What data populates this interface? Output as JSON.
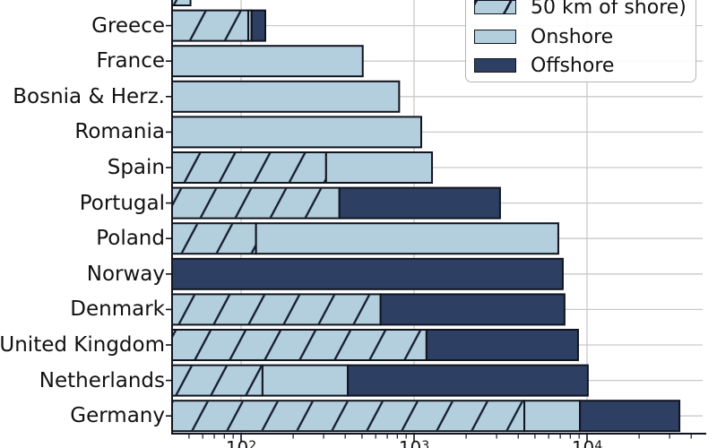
{
  "legend": {
    "items": [
      {
        "key": "coastal",
        "label": "50 km of shore)",
        "swatch": "hatched-lightblue"
      },
      {
        "key": "onshore",
        "label": "Onshore",
        "swatch": "lightblue"
      },
      {
        "key": "offshore",
        "label": "Offshore",
        "swatch": "navy"
      }
    ]
  },
  "colors": {
    "onshore": "#b3cedc",
    "offshore": "#2d4064",
    "hatch": "#131c30",
    "edge": "#10141f",
    "grid": "#c9c9c9",
    "text": "#111111",
    "legend_border": "#b5b5b5"
  },
  "chart_data": {
    "type": "bar",
    "orientation": "horizontal",
    "stacked": true,
    "x_scale": "log",
    "xlim": [
      40,
      46500
    ],
    "grid": "both",
    "legend_position": "upper right",
    "stack_keys": [
      "coastal",
      "onshore",
      "offshore"
    ],
    "x_ticks": [
      {
        "base": "10",
        "exp": "2",
        "value": 100
      },
      {
        "base": "10",
        "exp": "3",
        "value": 1000
      },
      {
        "base": "10",
        "exp": "4",
        "value": 10000
      }
    ],
    "x_minor_ticks": [
      50,
      60,
      70,
      80,
      90,
      200,
      300,
      400,
      500,
      600,
      700,
      800,
      900,
      2000,
      3000,
      4000,
      5000,
      6000,
      7000,
      8000,
      9000,
      20000,
      30000,
      40000
    ],
    "rows": [
      {
        "label": "",
        "segments": [
          {
            "key": "coastal",
            "value": 51
          }
        ]
      },
      {
        "label": "Greece",
        "segments": [
          {
            "key": "coastal",
            "value": 110
          },
          {
            "key": "onshore",
            "value": 5
          },
          {
            "key": "offshore",
            "value": 23
          }
        ]
      },
      {
        "label": "France",
        "segments": [
          {
            "key": "onshore",
            "value": 505
          }
        ]
      },
      {
        "label": "Bosnia & Herz.",
        "segments": [
          {
            "key": "onshore",
            "value": 820
          }
        ]
      },
      {
        "label": "Romania",
        "segments": [
          {
            "key": "onshore",
            "value": 1100
          }
        ]
      },
      {
        "label": "Spain",
        "segments": [
          {
            "key": "coastal",
            "value": 310
          },
          {
            "key": "onshore",
            "value": 960
          }
        ]
      },
      {
        "label": "Portugal",
        "segments": [
          {
            "key": "coastal",
            "value": 370
          },
          {
            "key": "offshore",
            "value": 2770
          }
        ]
      },
      {
        "label": "Poland",
        "segments": [
          {
            "key": "coastal",
            "value": 122
          },
          {
            "key": "onshore",
            "value": 6700
          }
        ]
      },
      {
        "label": "Norway",
        "segments": [
          {
            "key": "offshore",
            "value": 7240
          }
        ]
      },
      {
        "label": "Denmark",
        "segments": [
          {
            "key": "coastal",
            "value": 640
          },
          {
            "key": "offshore",
            "value": 6770
          }
        ]
      },
      {
        "label": "United Kingdom",
        "segments": [
          {
            "key": "coastal",
            "value": 1180
          },
          {
            "key": "offshore",
            "value": 7690
          }
        ]
      },
      {
        "label": "Netherlands",
        "segments": [
          {
            "key": "coastal",
            "value": 133
          },
          {
            "key": "onshore",
            "value": 281
          },
          {
            "key": "offshore",
            "value": 9690
          }
        ]
      },
      {
        "label": "Germany",
        "segments": [
          {
            "key": "coastal",
            "value": 4340
          },
          {
            "key": "onshore",
            "value": 4760
          },
          {
            "key": "offshore",
            "value": 25100
          }
        ]
      }
    ]
  }
}
